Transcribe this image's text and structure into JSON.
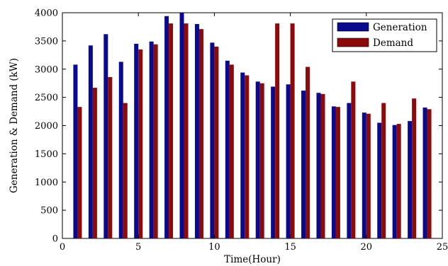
{
  "chart_data": {
    "type": "bar",
    "xlabel": "Time(Hour)",
    "ylabel": "Generation & Demand (kW)",
    "xlim": [
      0,
      25
    ],
    "ylim": [
      0,
      4000
    ],
    "xticks": [
      "0",
      "5",
      "10",
      "15",
      "20",
      "25"
    ],
    "yticks": [
      "0",
      "500",
      "1000",
      "1500",
      "2000",
      "2500",
      "3000",
      "3500",
      "4000"
    ],
    "grid": false,
    "legend_position": "top-right",
    "x": [
      1,
      2,
      3,
      4,
      5,
      6,
      7,
      8,
      9,
      10,
      11,
      12,
      13,
      14,
      15,
      16,
      17,
      18,
      19,
      20,
      21,
      22,
      23,
      24
    ],
    "series": [
      {
        "name": "Generation",
        "color": "#0a0a8c",
        "values": [
          3080,
          3420,
          3620,
          3130,
          3450,
          3490,
          3940,
          4000,
          3800,
          3470,
          3150,
          2940,
          2780,
          2690,
          2730,
          2620,
          2580,
          2340,
          2400,
          2230,
          2050,
          2010,
          2080,
          2320
        ]
      },
      {
        "name": "Demand",
        "color": "#8c0a0a",
        "values": [
          2330,
          2670,
          2860,
          2400,
          3350,
          3440,
          3810,
          3810,
          3710,
          3400,
          3080,
          2890,
          2750,
          3810,
          3810,
          3040,
          2560,
          2330,
          2780,
          2210,
          2400,
          2030,
          2480,
          2290
        ]
      }
    ]
  }
}
